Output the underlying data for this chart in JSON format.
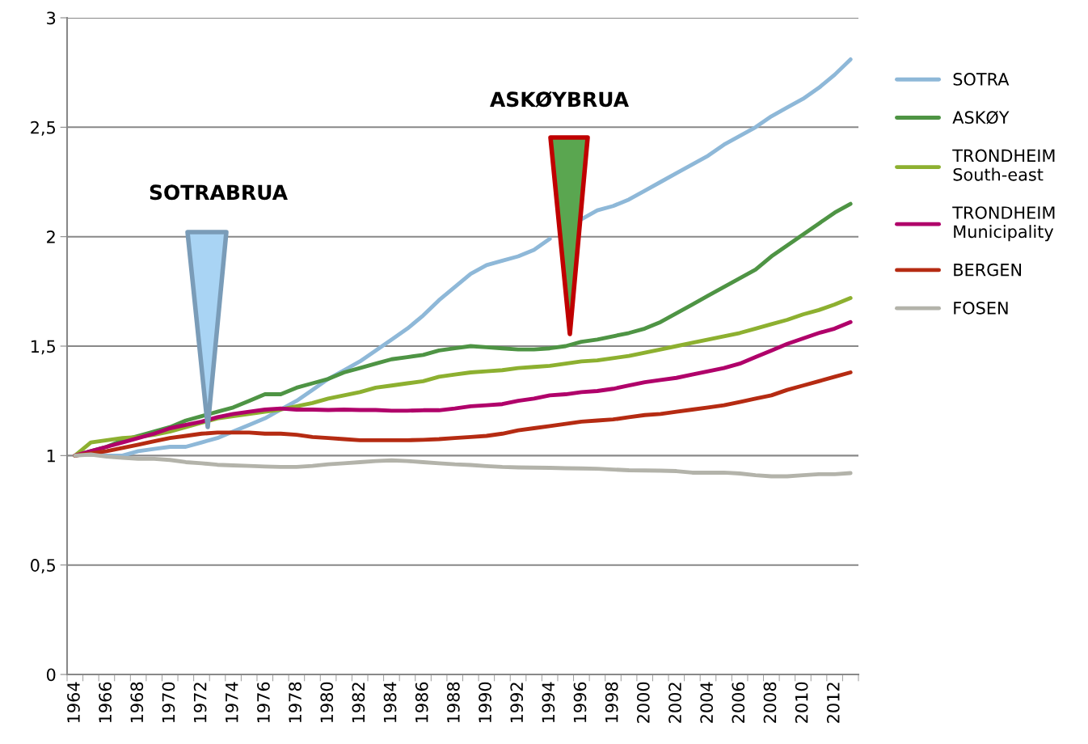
{
  "chart_data": {
    "type": "line",
    "categories": [
      "1964",
      null,
      "1966",
      null,
      "1968",
      null,
      "1970",
      null,
      "1972",
      null,
      "1974",
      null,
      "1976",
      null,
      "1978",
      null,
      "1980",
      null,
      "1982",
      null,
      "1984",
      null,
      "1986",
      null,
      "1988",
      null,
      "1990",
      null,
      "1992",
      null,
      "1994",
      null,
      "1996",
      null,
      "1998",
      null,
      "2000",
      null,
      "2002",
      null,
      "2004",
      null,
      "2006",
      null,
      "2008",
      null,
      "2010",
      null,
      "2012",
      null
    ],
    "series": [
      {
        "name": "SOTRA",
        "color": "#8eb8d8",
        "values": [
          1.0,
          1.01,
          1.0,
          1.0,
          1.02,
          1.03,
          1.04,
          1.04,
          1.06,
          1.08,
          1.11,
          1.14,
          1.17,
          1.21,
          1.25,
          1.3,
          1.35,
          1.39,
          1.43,
          1.48,
          1.53,
          1.58,
          1.64,
          1.71,
          1.77,
          1.83,
          1.87,
          1.89,
          1.91,
          1.94,
          1.99,
          null,
          2.08,
          2.12,
          2.14,
          2.17,
          2.21,
          2.25,
          2.29,
          2.33,
          2.37,
          2.42,
          2.46,
          2.5,
          2.55,
          2.59,
          2.63,
          2.68,
          2.74,
          2.81
        ]
      },
      {
        "name": "ASKØY",
        "color": "#4e9444",
        "values": [
          1.0,
          1.02,
          1.04,
          1.07,
          1.09,
          1.11,
          1.13,
          1.16,
          1.18,
          1.2,
          1.22,
          1.25,
          1.28,
          1.28,
          1.31,
          1.33,
          1.35,
          1.38,
          1.4,
          1.42,
          1.44,
          1.45,
          1.46,
          1.48,
          1.49,
          1.5,
          1.495,
          1.49,
          1.485,
          1.485,
          1.49,
          1.5,
          1.52,
          1.53,
          1.545,
          1.56,
          1.58,
          1.61,
          1.65,
          1.69,
          1.73,
          1.77,
          1.81,
          1.85,
          1.91,
          1.96,
          2.01,
          2.06,
          2.11,
          2.15
        ]
      },
      {
        "name": "TRONDHEIM\nSouth-east",
        "color": "#8db030",
        "values": [
          1.0,
          1.06,
          1.07,
          1.08,
          1.085,
          1.095,
          1.11,
          1.13,
          1.15,
          1.17,
          1.18,
          1.19,
          1.2,
          1.21,
          1.225,
          1.24,
          1.26,
          1.275,
          1.29,
          1.31,
          1.32,
          1.33,
          1.34,
          1.36,
          1.37,
          1.38,
          1.385,
          1.39,
          1.4,
          1.405,
          1.41,
          1.42,
          1.43,
          1.435,
          1.445,
          1.455,
          1.47,
          1.485,
          1.5,
          1.515,
          1.53,
          1.545,
          1.56,
          1.58,
          1.6,
          1.62,
          1.645,
          1.665,
          1.69,
          1.72
        ]
      },
      {
        "name": "TRONDHEIM\nMunicipality",
        "color": "#b0006a",
        "values": [
          1.0,
          1.02,
          1.04,
          1.06,
          1.08,
          1.1,
          1.125,
          1.14,
          1.155,
          1.175,
          1.19,
          1.2,
          1.21,
          1.215,
          1.21,
          1.21,
          1.208,
          1.21,
          1.208,
          1.208,
          1.205,
          1.205,
          1.207,
          1.207,
          1.215,
          1.225,
          1.23,
          1.235,
          1.25,
          1.26,
          1.275,
          1.28,
          1.29,
          1.295,
          1.305,
          1.32,
          1.335,
          1.345,
          1.355,
          1.37,
          1.385,
          1.4,
          1.42,
          1.45,
          1.48,
          1.51,
          1.535,
          1.56,
          1.58,
          1.61
        ]
      },
      {
        "name": "BERGEN",
        "color": "#b52b12",
        "values": [
          1.0,
          1.01,
          1.02,
          1.035,
          1.05,
          1.065,
          1.08,
          1.09,
          1.1,
          1.105,
          1.105,
          1.105,
          1.1,
          1.1,
          1.095,
          1.085,
          1.08,
          1.075,
          1.07,
          1.07,
          1.07,
          1.07,
          1.072,
          1.075,
          1.08,
          1.085,
          1.09,
          1.1,
          1.115,
          1.125,
          1.135,
          1.145,
          1.155,
          1.16,
          1.165,
          1.175,
          1.185,
          1.19,
          1.2,
          1.21,
          1.22,
          1.23,
          1.245,
          1.26,
          1.275,
          1.3,
          1.32,
          1.34,
          1.36,
          1.38
        ]
      },
      {
        "name": "FOSEN",
        "color": "#b3b3aa",
        "values": [
          1.0,
          1.005,
          0.995,
          0.99,
          0.985,
          0.985,
          0.98,
          0.97,
          0.965,
          0.958,
          0.955,
          0.953,
          0.95,
          0.948,
          0.948,
          0.953,
          0.96,
          0.965,
          0.97,
          0.975,
          0.978,
          0.975,
          0.97,
          0.965,
          0.96,
          0.957,
          0.952,
          0.948,
          0.946,
          0.945,
          0.944,
          0.942,
          0.941,
          0.94,
          0.936,
          0.933,
          0.932,
          0.931,
          0.929,
          0.922,
          0.922,
          0.922,
          0.918,
          0.91,
          0.905,
          0.905,
          0.91,
          0.915,
          0.915,
          0.92
        ]
      }
    ],
    "ylim": [
      0,
      3
    ],
    "yticks": [
      0,
      {
        "value": 0.5,
        "label": "0,5"
      },
      1,
      {
        "value": 1.5,
        "label": "1,5"
      },
      2,
      {
        "value": 2.5,
        "label": "2,5"
      },
      3
    ],
    "grid": "y",
    "legend": "right",
    "marker": "none",
    "line_style": "solid",
    "annotations": [
      "SOTRABRUA",
      "ASKØYBRUA"
    ]
  }
}
